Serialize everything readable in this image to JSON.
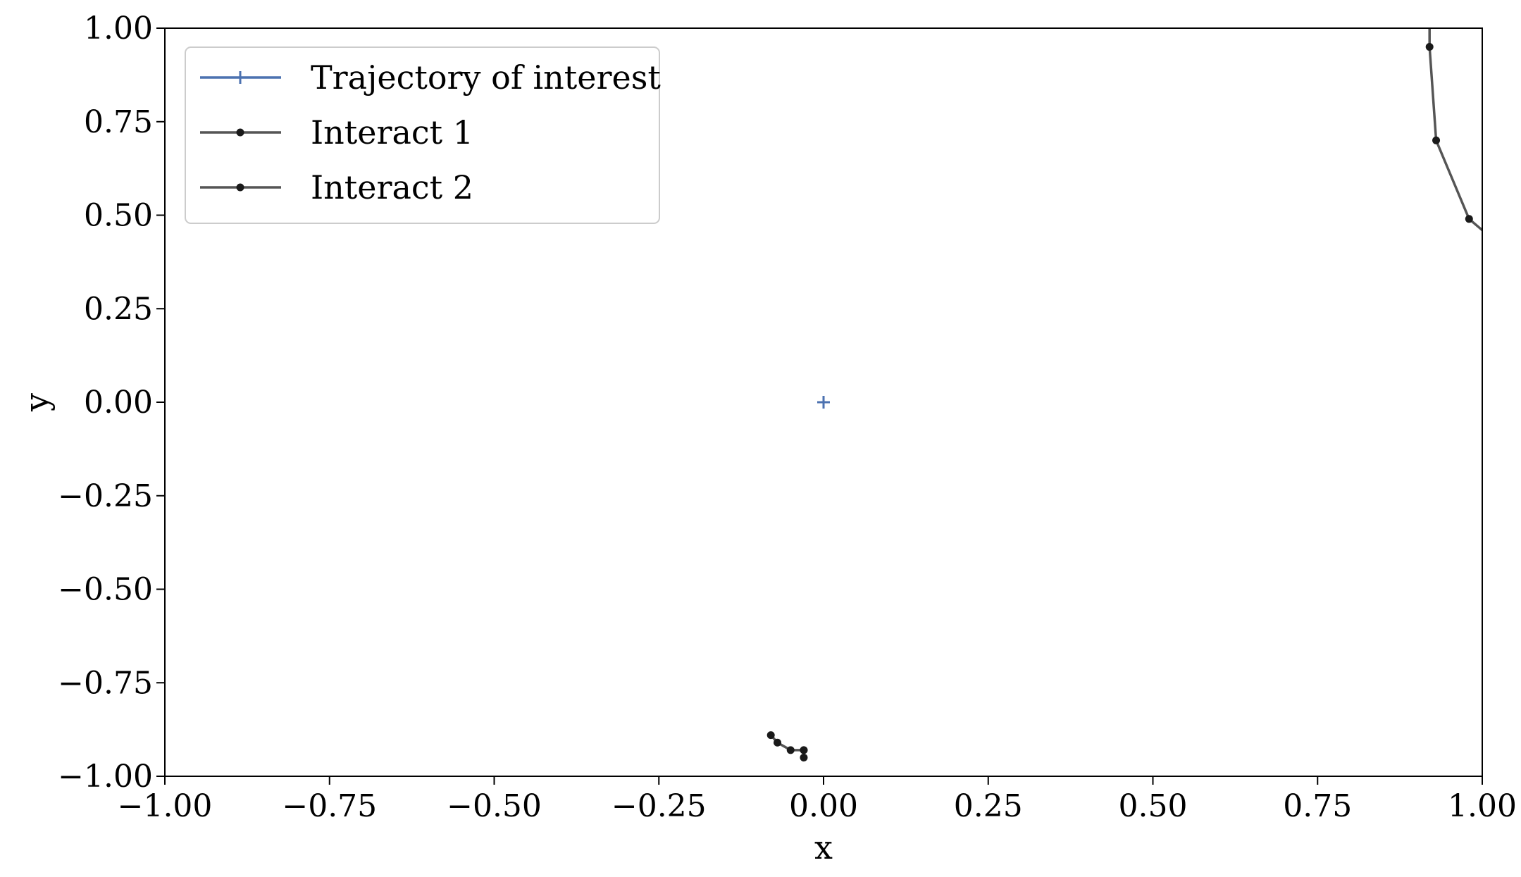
{
  "chart_data": {
    "type": "line",
    "xlabel": "x",
    "ylabel": "y",
    "xlim": [
      -1.0,
      1.0
    ],
    "ylim": [
      -1.0,
      1.0
    ],
    "xticks": [
      "−1.00",
      "−0.75",
      "−0.50",
      "−0.25",
      "0.00",
      "0.25",
      "0.50",
      "0.75",
      "1.00"
    ],
    "yticks": [
      "−1.00",
      "−0.75",
      "−0.50",
      "−0.25",
      "0.00",
      "0.25",
      "0.50",
      "0.75",
      "1.00"
    ],
    "xtick_values": [
      -1.0,
      -0.75,
      -0.5,
      -0.25,
      0.0,
      0.25,
      0.5,
      0.75,
      1.0
    ],
    "ytick_values": [
      -1.0,
      -0.75,
      -0.5,
      -0.25,
      0.0,
      0.25,
      0.5,
      0.75,
      1.0
    ],
    "grid": false,
    "legend_position": "top-left",
    "series": [
      {
        "name": "Trajectory of interest",
        "color": "#4c72b0",
        "marker": "plus",
        "x": [
          0.0
        ],
        "y": [
          0.0
        ]
      },
      {
        "name": "Interact 1",
        "color": "#555555",
        "marker": "dot",
        "x": [
          0.92,
          0.92,
          0.93,
          0.98,
          1.02
        ],
        "y": [
          1.04,
          0.95,
          0.7,
          0.49,
          0.43
        ]
      },
      {
        "name": "Interact 2",
        "color": "#555555",
        "marker": "dot",
        "x": [
          -0.08,
          -0.07,
          -0.05,
          -0.03,
          -0.03,
          -0.03
        ],
        "y": [
          -0.89,
          -0.91,
          -0.93,
          -0.93,
          -0.95,
          -0.93
        ]
      }
    ]
  }
}
